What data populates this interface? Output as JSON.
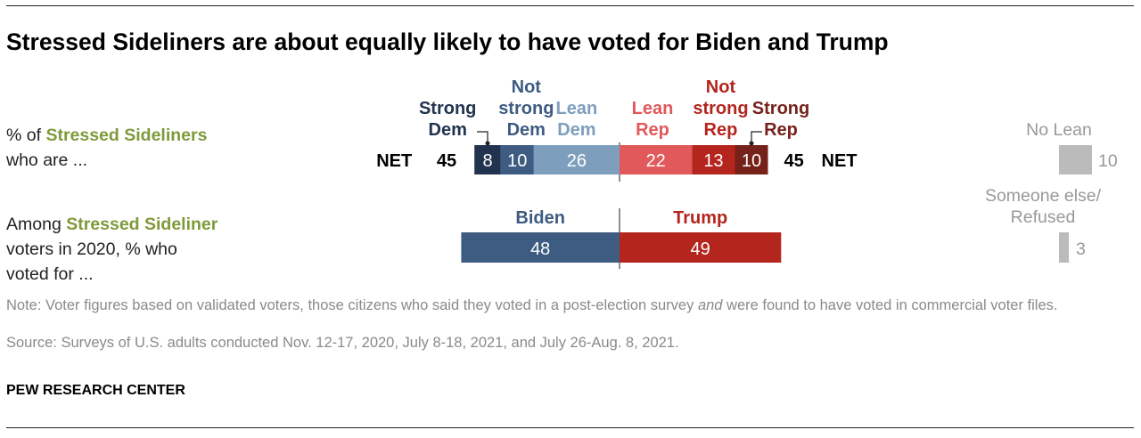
{
  "title": "Stressed Sideliners are about equally likely to have voted for Biden and Trump",
  "row1": {
    "prefix": "% of ",
    "highlight": "Stressed Sideliners",
    "line2": "who are ..."
  },
  "row2": {
    "prefix": "Among ",
    "highlight": "Stressed Sideliner",
    "line2": "voters in 2020, % who",
    "line3": "voted for ..."
  },
  "note": {
    "before": "Note: Voter figures based on validated voters, those citizens who said they voted in a post-election survey ",
    "emph": "and",
    "after": " were found to have voted in commercial voter files."
  },
  "source": "Source: Surveys of U.S. adults conducted Nov. 12-17, 2020, July 8-18, 2021, and July 26-Aug. 8, 2021.",
  "org": "PEW RESEARCH CENTER",
  "colors": {
    "strong_dem": "#22334f",
    "not_strong_dem": "#3e5b81",
    "lean_dem": "#7d9fbd",
    "lean_rep": "#e1595a",
    "not_strong_rep": "#b4251e",
    "strong_rep": "#76221b",
    "biden": "#3e5b81",
    "trump": "#b4251e",
    "other": "#bbbbbb",
    "accent": "#7e9a3a"
  },
  "chart_data": [
    {
      "type": "bar",
      "stacked": true,
      "net_label": "NET",
      "dem_net": 45,
      "rep_net": 45,
      "series": [
        {
          "name": "Strong Dem",
          "side": "dem",
          "value": 8,
          "label_lines": [
            "Strong",
            "Dem"
          ],
          "color": "#22334f"
        },
        {
          "name": "Not strong Dem",
          "side": "dem",
          "value": 10,
          "label_lines": [
            "Not",
            "strong",
            "Dem"
          ],
          "color": "#3e5b81"
        },
        {
          "name": "Lean Dem",
          "side": "dem",
          "value": 26,
          "label_lines": [
            "Lean",
            "Dem"
          ],
          "color": "#7d9fbd"
        },
        {
          "name": "Lean Rep",
          "side": "rep",
          "value": 22,
          "label_lines": [
            "Lean",
            "Rep"
          ],
          "color": "#e1595a"
        },
        {
          "name": "Not strong Rep",
          "side": "rep",
          "value": 13,
          "label_lines": [
            "Not",
            "strong",
            "Rep"
          ],
          "color": "#b4251e"
        },
        {
          "name": "Strong Rep",
          "side": "rep",
          "value": 10,
          "label_lines": [
            "Strong",
            "Rep"
          ],
          "color": "#76221b"
        }
      ],
      "extra": {
        "name": "No Lean",
        "value": 10
      }
    },
    {
      "type": "bar",
      "stacked": true,
      "series": [
        {
          "name": "Biden",
          "side": "dem",
          "value": 48,
          "color": "#3e5b81"
        },
        {
          "name": "Trump",
          "side": "rep",
          "value": 49,
          "color": "#b4251e"
        }
      ],
      "extra": {
        "name": "Someone else/ Refused",
        "label_lines": [
          "Someone else/",
          "Refused"
        ],
        "value": 3
      }
    }
  ]
}
